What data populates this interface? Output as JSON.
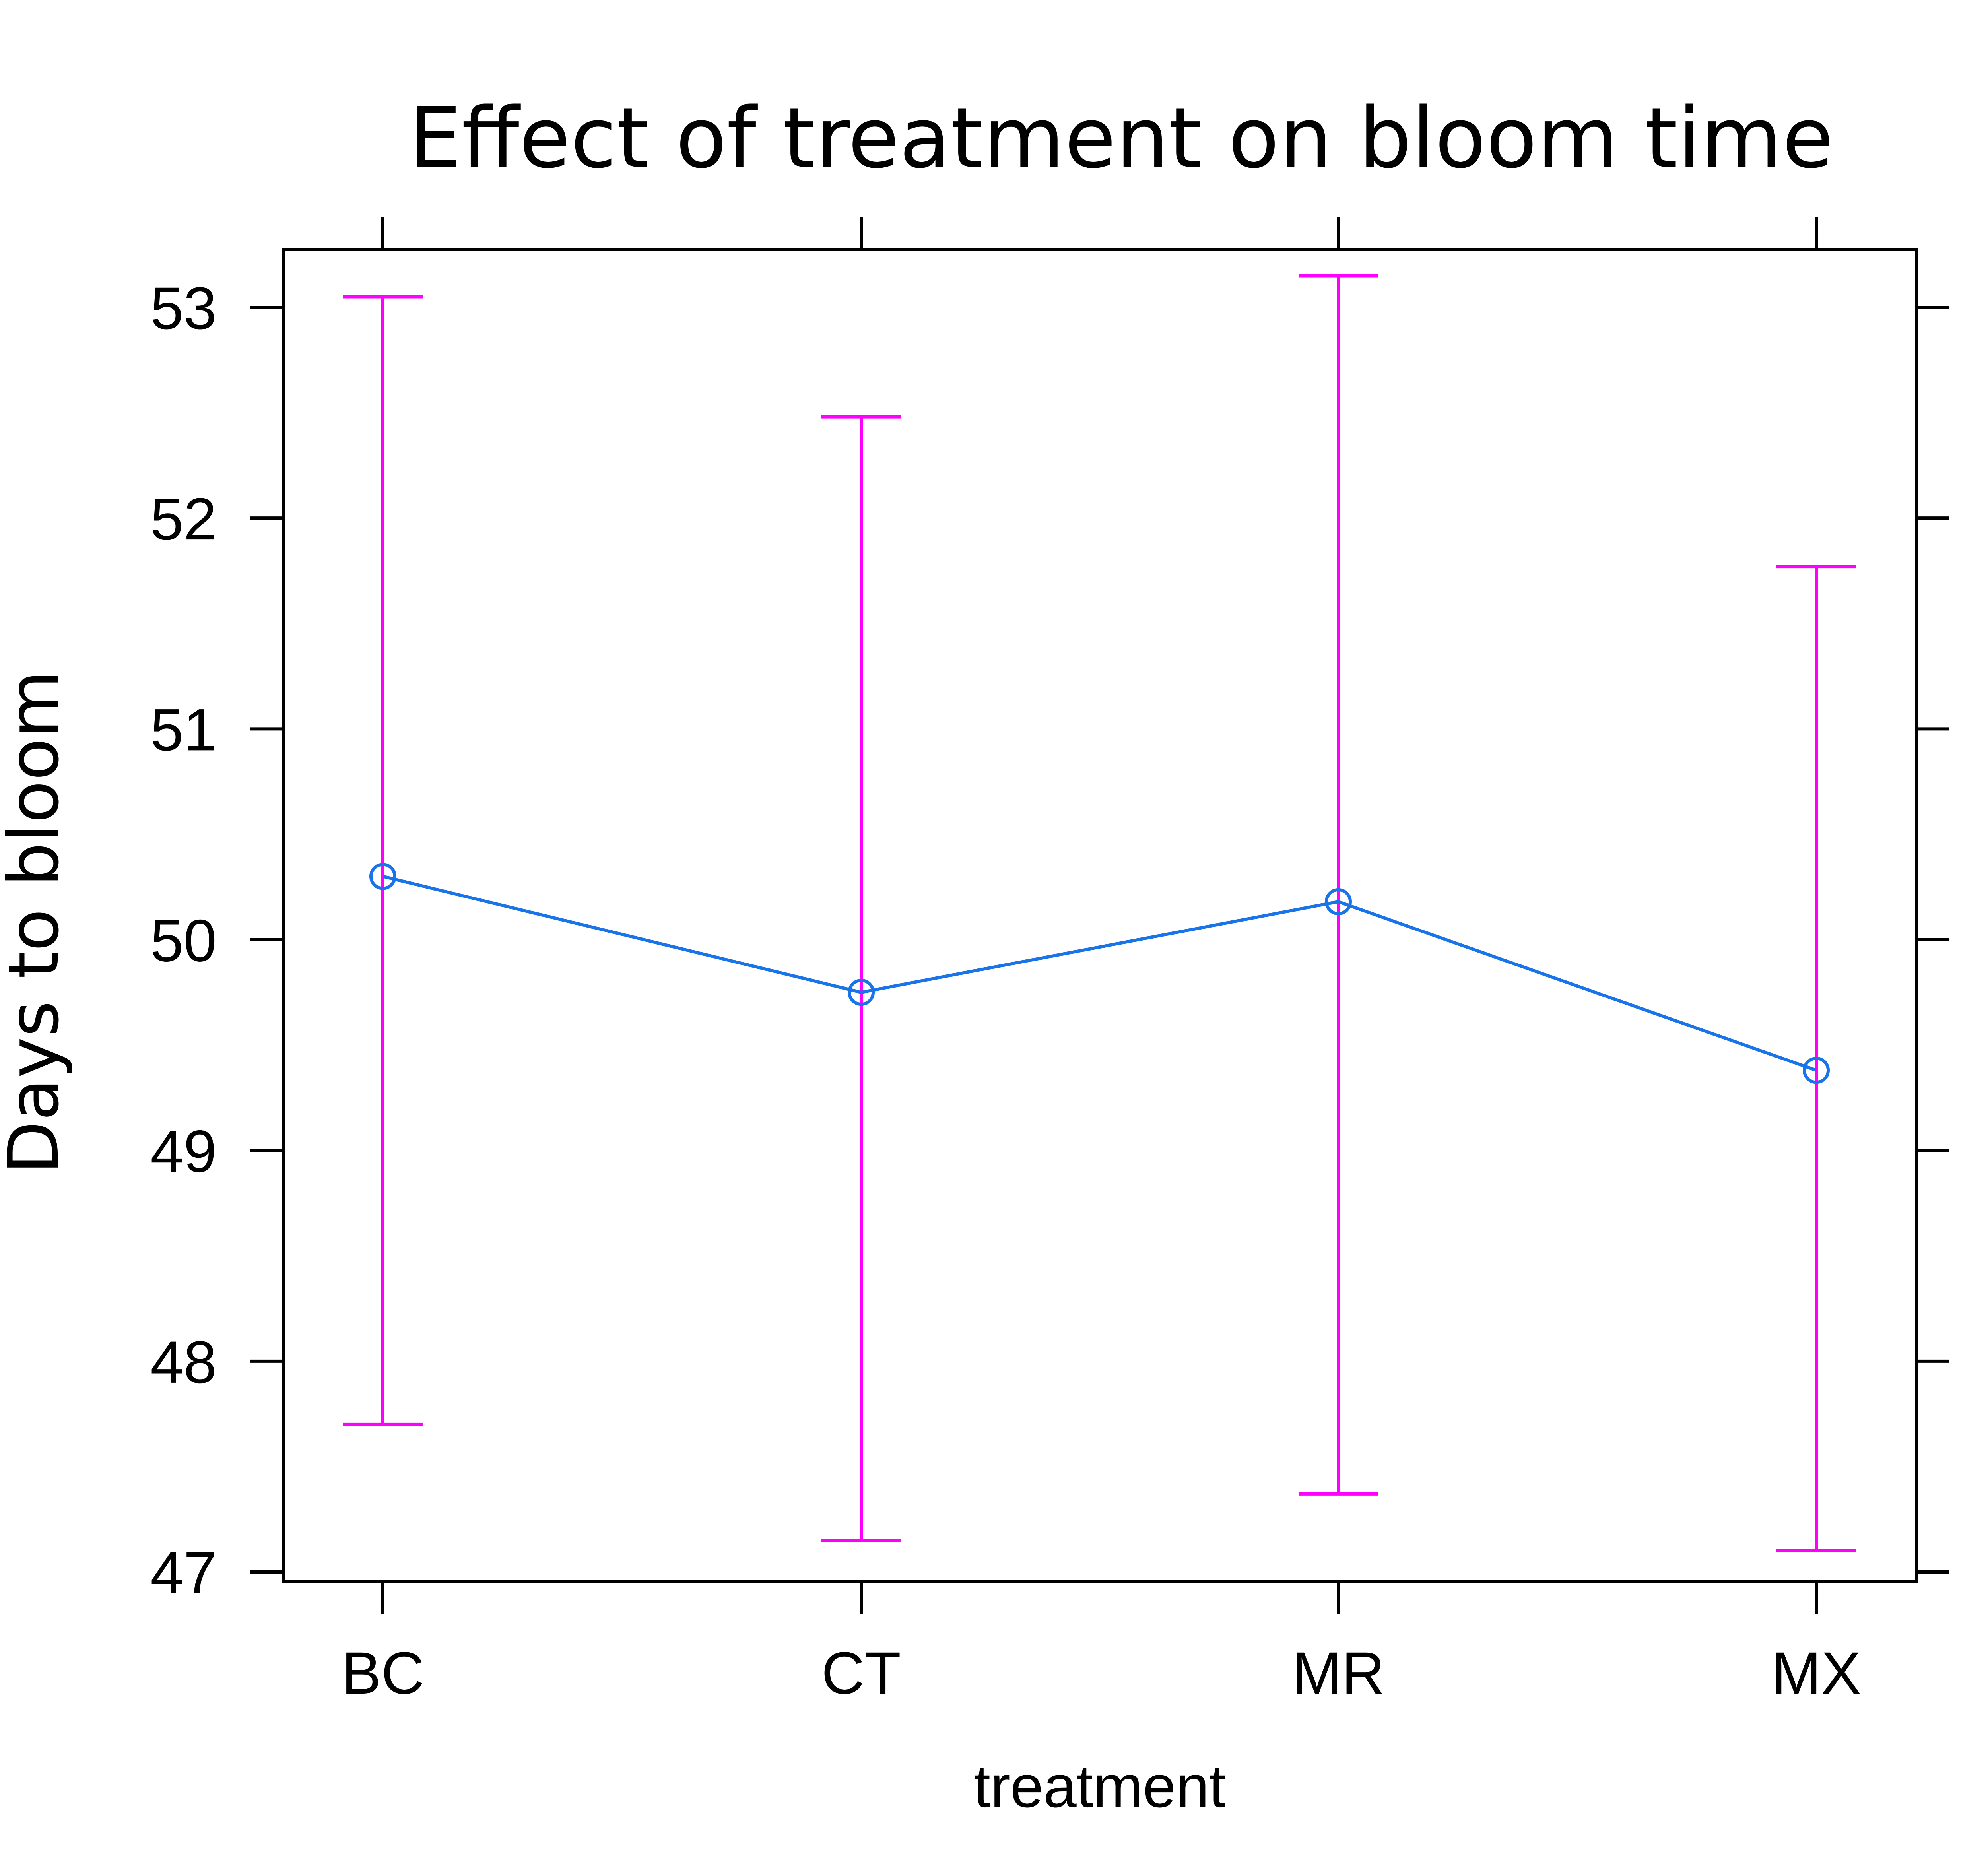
{
  "chart_data": {
    "type": "line",
    "title": "Effect of treatment on bloom time",
    "xlabel": "treatment",
    "ylabel": "Days to bloom",
    "categories": [
      "BC",
      "CT",
      "MR",
      "MX"
    ],
    "series": [
      {
        "values": [
          50.3,
          49.75,
          50.18,
          49.38
        ],
        "lower": [
          47.7,
          47.15,
          47.37,
          47.1
        ],
        "upper": [
          53.05,
          52.48,
          53.15,
          51.77
        ]
      }
    ],
    "ylim": [
      46.7,
      53.3
    ],
    "yticks": [
      47,
      48,
      49,
      50,
      51,
      52,
      53
    ],
    "grid": false,
    "legend": "none",
    "colors": {
      "line": "#1874e8",
      "errorbar": "#ff00ff",
      "axis": "#000000"
    }
  }
}
